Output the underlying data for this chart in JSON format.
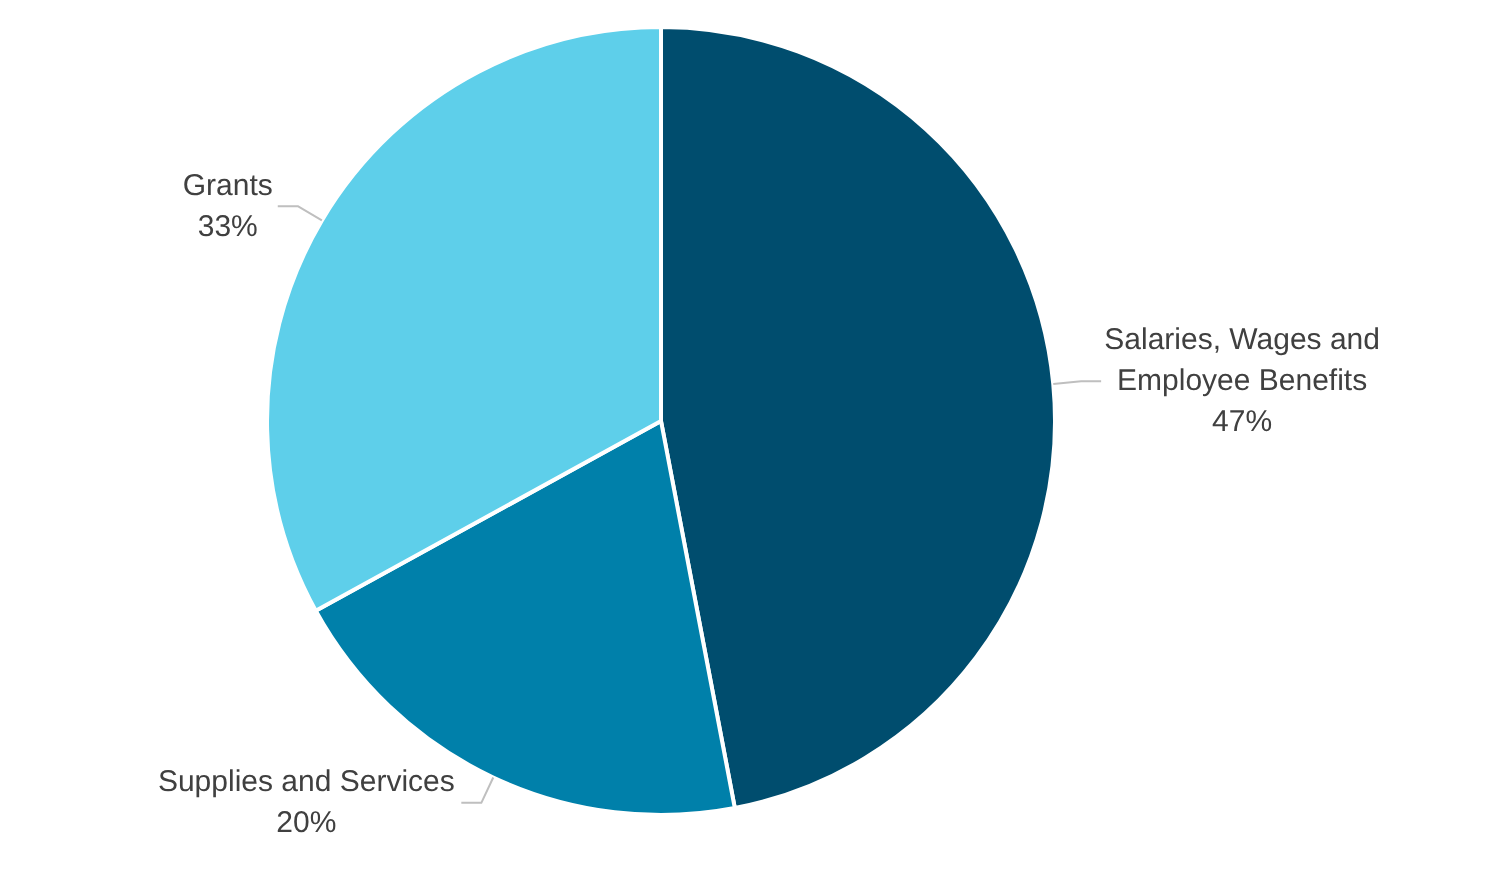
{
  "chart_data": {
    "type": "pie",
    "categories": [
      "Salaries, Wages and Employee Benefits",
      "Supplies and Services",
      "Grants"
    ],
    "values": [
      47,
      20,
      33
    ],
    "colors": [
      "#004d6e",
      "#0080aa",
      "#5ecfea"
    ],
    "value_labels": [
      "47%",
      "20%",
      "33%"
    ],
    "legend": false
  }
}
